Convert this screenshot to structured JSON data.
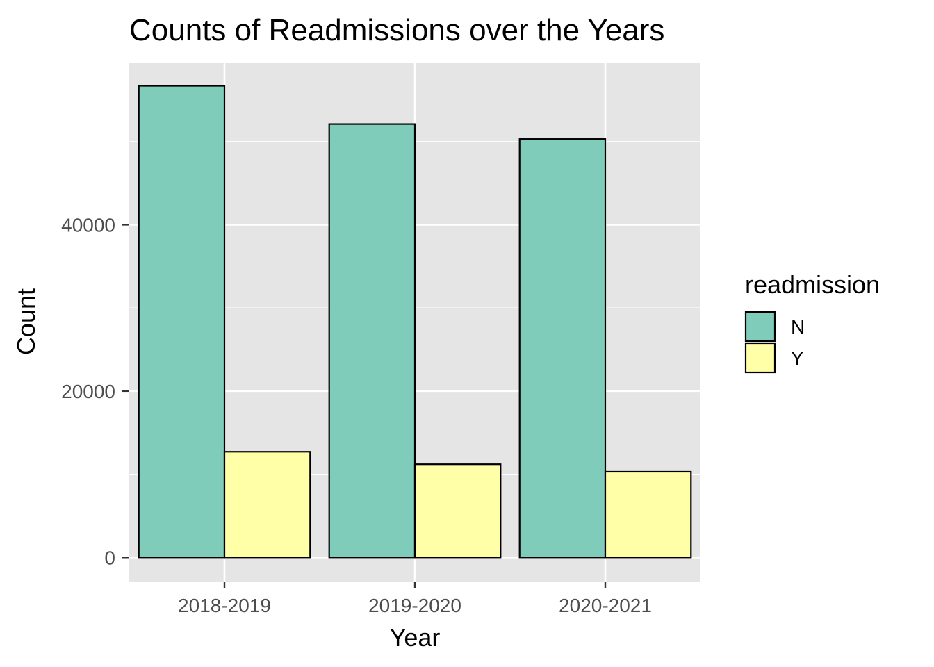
{
  "chart_data": {
    "type": "bar",
    "title": "Counts of Readmissions over the Years",
    "xlabel": "Year",
    "ylabel": "Count",
    "categories": [
      "2018-2019",
      "2019-2020",
      "2020-2021"
    ],
    "series": [
      {
        "name": "N",
        "values": [
          56700,
          52100,
          50300
        ],
        "color": "#7fccba"
      },
      {
        "name": "Y",
        "values": [
          12700,
          11200,
          10300
        ],
        "color": "#ffffa8"
      }
    ],
    "ylim": [
      -2900,
      59500
    ],
    "y_ticks": [
      0,
      20000,
      40000
    ],
    "y_minor_ticks": [
      10000,
      30000,
      50000
    ],
    "legend": {
      "title": "readmission",
      "placement": "right"
    },
    "grid": true,
    "colors": {
      "panel_background": "#e5e5e5",
      "grid": "#ffffff",
      "bar_outline": "#000000",
      "tick_text": "#4d4d4d",
      "tick_mark": "#333333"
    }
  }
}
